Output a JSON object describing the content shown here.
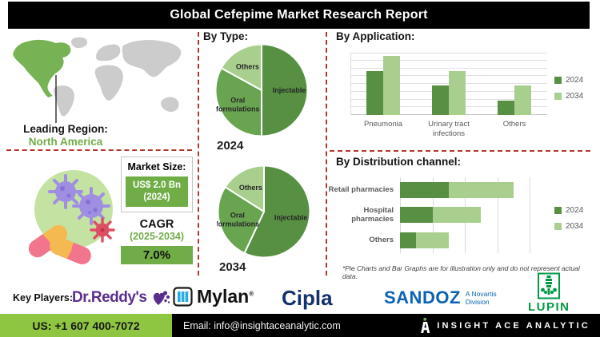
{
  "header": {
    "title": "Global Cefepime Market Research Report"
  },
  "map": {
    "leading_label": "Leading Region:",
    "leading_value": "North America"
  },
  "market": {
    "size_label": "Market Size:",
    "size_line1": "US$ 2.0 Bn",
    "size_line2": "(2024)",
    "cagr_label": "CAGR",
    "cagr_period": "(2025-2034)",
    "cagr_value": "7.0%"
  },
  "sections": {
    "by_type": "By Type:",
    "by_application": "By Application:",
    "by_distribution": "By Distribution channel:"
  },
  "footnote": "*Pie Charts and Bar Graphs are for illustration only and do not represent actual data.",
  "key_players": {
    "label": "Key Players:",
    "drreddys": "Dr.Reddy's",
    "mylan": "Mylan",
    "mylan_reg": "®",
    "cipla": "Cipla",
    "sandoz": "SANDOZ",
    "sandoz_sub1": "A Novartis",
    "sandoz_sub2": "Division",
    "lupin": "LUPIN"
  },
  "footer": {
    "phone": "US: +1 607 400-7072",
    "email": "Email: info@insightaceanalytic.com",
    "brand": "INSIGHT ACE ANALYTIC"
  },
  "colors": {
    "accent_green": "#70ad47",
    "dark_green": "#579043",
    "mid_green": "#69a551",
    "light_green": "#a9cf8e",
    "divider_red": "#b4372e",
    "footer_green": "#8fc641",
    "map_gray": "#cccccc"
  },
  "chart_data": [
    {
      "id": "pie2024",
      "type": "pie",
      "title": "2024",
      "labels": [
        "Injectable",
        "Oral formulations",
        "Others"
      ],
      "values": [
        50,
        33,
        17
      ],
      "colors": [
        "#579043",
        "#69a551",
        "#a9cf8e"
      ],
      "note": "values are illustrative percentages"
    },
    {
      "id": "pie2034",
      "type": "pie",
      "title": "2034",
      "labels": [
        "Injectable",
        "Oral formulations",
        "Others"
      ],
      "values": [
        57,
        27,
        16
      ],
      "colors": [
        "#579043",
        "#69a551",
        "#a9cf8e"
      ],
      "note": "values are illustrative percentages"
    },
    {
      "id": "application",
      "type": "bar",
      "title": "By Application:",
      "categories": [
        "Pneumonia",
        "Urinary tract infections",
        "Others"
      ],
      "series": [
        {
          "name": "2024",
          "color": "#579043",
          "values": [
            70,
            48,
            23
          ]
        },
        {
          "name": "2034",
          "color": "#a9cf8e",
          "values": [
            95,
            70,
            48
          ]
        }
      ],
      "ylim": [
        0,
        100
      ],
      "grid": true,
      "legend_position": "right"
    },
    {
      "id": "distribution",
      "type": "stacked-hbar",
      "title": "By Distribution channel:",
      "categories": [
        "Retail pharmacies",
        "Hospital pharmacies",
        "Others"
      ],
      "series": [
        {
          "name": "2024",
          "color": "#579043",
          "values": [
            1.5,
            1.0,
            0.5
          ]
        },
        {
          "name": "2034",
          "color": "#a9cf8e",
          "values": [
            2.0,
            1.5,
            1.0
          ]
        }
      ],
      "xlim": [
        0,
        4
      ],
      "grid": true,
      "legend_position": "right"
    }
  ]
}
